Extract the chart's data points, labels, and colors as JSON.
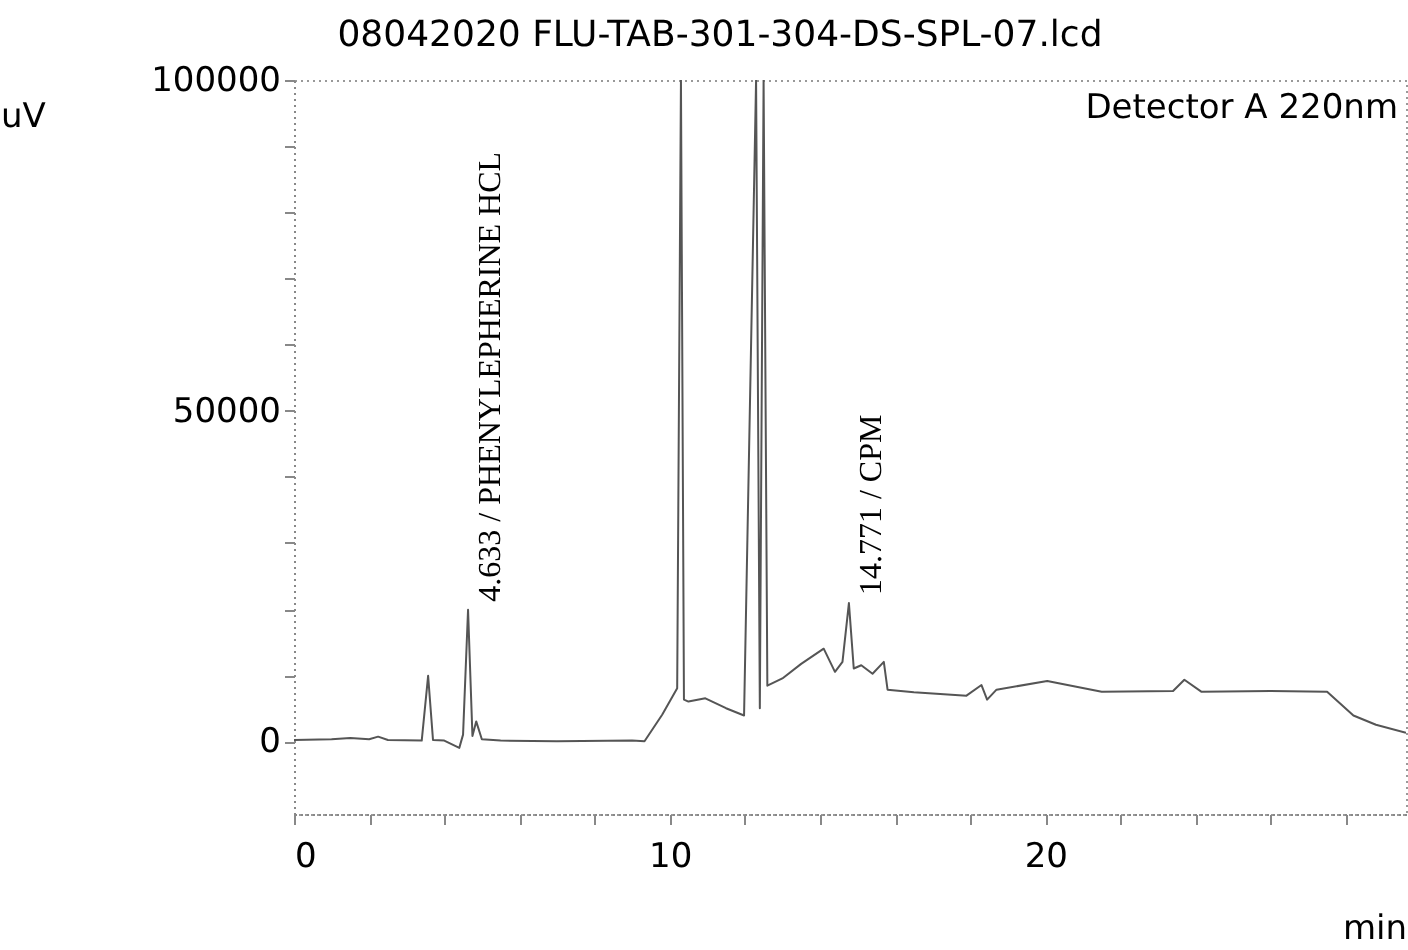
{
  "chart_data": {
    "type": "line",
    "title": "08042020 FLU-TAB-301-304-DS-SPL-07.lcd",
    "xlabel": "min",
    "ylabel": "uV",
    "annotations": [
      "Detector A 220nm",
      {
        "text": "4.633 / PHENYLEPHERINE HCL",
        "x": 4.633,
        "y": 19900
      },
      {
        "text": "14.771 / CPM",
        "x": 14.771,
        "y": 20900
      }
    ],
    "x": [
      0,
      1.0,
      1.5,
      2.0,
      2.24,
      2.5,
      3.4,
      3.57,
      3.7,
      4.0,
      4.4,
      4.5,
      4.633,
      4.75,
      4.85,
      5.0,
      5.5,
      7.0,
      9.0,
      9.33,
      9.8,
      10.2,
      10.3,
      10.38,
      10.5,
      10.95,
      11.5,
      11.98,
      12.3,
      12.4,
      12.5,
      12.6,
      13.0,
      13.5,
      14.1,
      14.4,
      14.6,
      14.771,
      14.9,
      15.1,
      15.4,
      15.7,
      15.8,
      16.5,
      17.9,
      18.3,
      18.45,
      18.7,
      20.05,
      21.5,
      23.4,
      23.7,
      24.15,
      26.0,
      27.5,
      28.2,
      28.8,
      29.6
    ],
    "series": [
      {
        "color": "#555555",
        "values": [
          200,
          300,
          500,
          300,
          700,
          200,
          100,
          9900,
          200,
          100,
          -1000,
          1000,
          19900,
          800,
          3000,
          300,
          100,
          0,
          100,
          0,
          4000,
          8000,
          100000,
          6300,
          6000,
          6500,
          5000,
          3900,
          100000,
          5000,
          100000,
          8400,
          9500,
          11700,
          14000,
          10500,
          12000,
          20900,
          11000,
          11500,
          10200,
          12000,
          7800,
          7400,
          6900,
          8500,
          6300,
          7800,
          9100,
          7500,
          7600,
          9300,
          7500,
          7600,
          7500,
          3900,
          2500,
          1300
        ]
      }
    ],
    "xlim": [
      0,
      29.6
    ],
    "ylim": [
      -11000,
      100000
    ],
    "xticks": [
      0,
      {
        "value": 2,
        "label": null
      },
      {
        "value": 4,
        "label": null
      },
      {
        "value": 6,
        "label": null
      },
      {
        "value": 8,
        "label": null
      },
      10,
      {
        "value": 12,
        "label": null
      },
      {
        "value": 14,
        "label": null
      },
      {
        "value": 16,
        "label": null
      },
      {
        "value": 18,
        "label": null
      },
      20,
      {
        "value": 22,
        "label": null
      },
      {
        "value": 24,
        "label": null
      },
      {
        "value": 26,
        "label": null
      },
      {
        "value": 28,
        "label": null
      }
    ],
    "yticks": [
      0,
      {
        "value": 10000,
        "label": null
      },
      {
        "value": 20000,
        "label": null
      },
      {
        "value": 30000,
        "label": null
      },
      {
        "value": 40000,
        "label": null
      },
      50000,
      {
        "value": 60000,
        "label": null
      },
      {
        "value": 70000,
        "label": null
      },
      {
        "value": 80000,
        "label": null
      },
      {
        "value": 90000,
        "label": null
      },
      100000
    ],
    "line_style": "solid"
  }
}
